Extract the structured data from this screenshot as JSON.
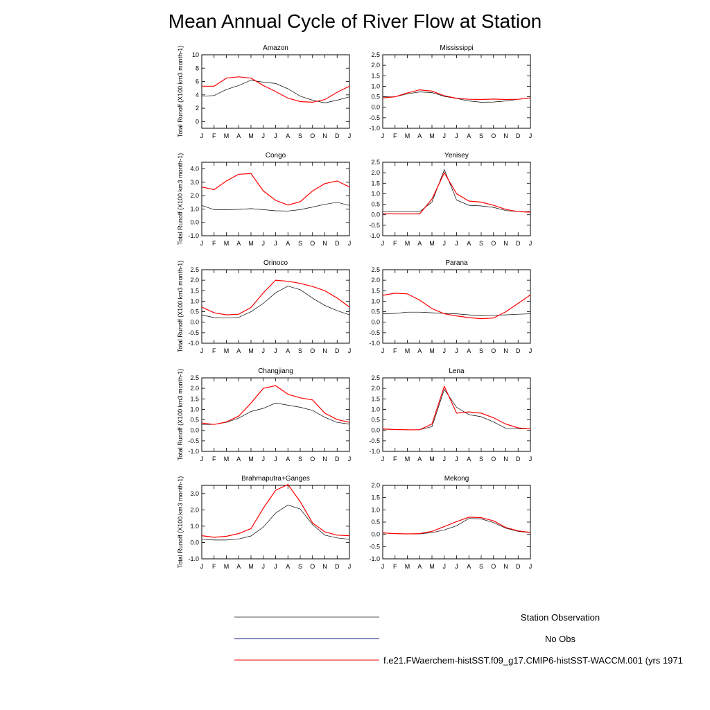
{
  "figure": {
    "title": "Mean Annual Cycle of River Flow at Station"
  },
  "legend": [
    {
      "label": "Station Observation",
      "color": "#000000"
    },
    {
      "label": "No Obs",
      "color": "#1a1a8c"
    },
    {
      "label": "f.e21.FWaerchem-histSST.f09_g17.CMIP6-histSST-WACCM.001 (yrs 1971",
      "color": "#ff0000"
    }
  ],
  "chart_data": [
    {
      "type": "line",
      "title": "Amazon",
      "ylabel": "Total Runoff (X100 km3 month-1)",
      "ylim": [
        -1,
        10
      ],
      "yticks": [
        "10",
        "8",
        "6",
        "4",
        "2",
        "0"
      ],
      "categories": [
        "J",
        "F",
        "M",
        "A",
        "M",
        "J",
        "J",
        "A",
        "S",
        "O",
        "N",
        "D",
        "J"
      ],
      "series": [
        {
          "name": "Station Observation",
          "color": "#000000",
          "values": [
            3.8,
            3.9,
            4.8,
            5.4,
            6.2,
            5.9,
            5.7,
            4.9,
            3.8,
            3.2,
            2.8,
            3.2,
            3.7
          ]
        },
        {
          "name": "f.e21.FWaerchem-histSST.f09_g17.CMIP6-histSST-WACCM.001 (yrs 1971",
          "color": "#ff0000",
          "values": [
            5.3,
            5.3,
            6.5,
            6.7,
            6.5,
            5.4,
            4.5,
            3.5,
            3.0,
            2.9,
            3.3,
            4.4,
            5.3
          ]
        }
      ]
    },
    {
      "type": "line",
      "title": "Mississippi",
      "ylabel": "",
      "ylim": [
        -1,
        2.5
      ],
      "yticks": [
        "2.5",
        "2.0",
        "1.5",
        "1.0",
        "0.5",
        "0.0",
        "-0.5",
        "-1.0"
      ],
      "categories": [
        "J",
        "F",
        "M",
        "A",
        "M",
        "J",
        "J",
        "A",
        "S",
        "O",
        "N",
        "D",
        "J"
      ],
      "series": [
        {
          "name": "Station Observation",
          "color": "#000000",
          "values": [
            0.5,
            0.5,
            0.64,
            0.73,
            0.7,
            0.52,
            0.42,
            0.3,
            0.24,
            0.25,
            0.3,
            0.38,
            0.45
          ]
        },
        {
          "name": "f.e21.FWaerchem-histSST.f09_g17.CMIP6-histSST-WACCM.001 (yrs 1971",
          "color": "#ff0000",
          "values": [
            0.45,
            0.5,
            0.68,
            0.83,
            0.77,
            0.55,
            0.43,
            0.38,
            0.37,
            0.39,
            0.37,
            0.38,
            0.45
          ]
        }
      ]
    },
    {
      "type": "line",
      "title": "Congo",
      "ylabel": "Total Runoff (X100 km3 month-1)",
      "ylim": [
        -1,
        4.5
      ],
      "yticks": [
        "4.0",
        "3.0",
        "2.0",
        "1.0",
        "0.0",
        "-1.0"
      ],
      "categories": [
        "J",
        "F",
        "M",
        "A",
        "M",
        "J",
        "J",
        "A",
        "S",
        "O",
        "N",
        "D",
        "J"
      ],
      "series": [
        {
          "name": "Station Observation",
          "color": "#000000",
          "values": [
            1.27,
            0.95,
            0.95,
            0.97,
            1.03,
            0.95,
            0.87,
            0.85,
            0.95,
            1.15,
            1.35,
            1.5,
            1.27
          ]
        },
        {
          "name": "f.e21.FWaerchem-histSST.f09_g17.CMIP6-histSST-WACCM.001 (yrs 1971",
          "color": "#ff0000",
          "values": [
            2.65,
            2.45,
            3.1,
            3.6,
            3.65,
            2.35,
            1.65,
            1.3,
            1.55,
            2.35,
            2.9,
            3.1,
            2.65
          ]
        }
      ]
    },
    {
      "type": "line",
      "title": "Yenisey",
      "ylabel": "",
      "ylim": [
        -1,
        2.5
      ],
      "yticks": [
        "2.5",
        "2.0",
        "1.5",
        "1.0",
        "0.5",
        "0.0",
        "-0.5",
        "-1.0"
      ],
      "categories": [
        "J",
        "F",
        "M",
        "A",
        "M",
        "J",
        "J",
        "A",
        "S",
        "O",
        "N",
        "D",
        "J"
      ],
      "series": [
        {
          "name": "Station Observation",
          "color": "#000000",
          "values": [
            0.15,
            0.15,
            0.15,
            0.15,
            0.6,
            2.15,
            0.7,
            0.45,
            0.42,
            0.35,
            0.2,
            0.15,
            0.15
          ]
        },
        {
          "name": "f.e21.FWaerchem-histSST.f09_g17.CMIP6-histSST-WACCM.001 (yrs 1971",
          "color": "#ff0000",
          "values": [
            0.05,
            0.04,
            0.04,
            0.04,
            0.75,
            2.0,
            1.0,
            0.65,
            0.6,
            0.45,
            0.25,
            0.15,
            0.12
          ]
        }
      ]
    },
    {
      "type": "line",
      "title": "Orinoco",
      "ylabel": "Total Runoff (X100 km3 month-1)",
      "ylim": [
        -1,
        2.5
      ],
      "yticks": [
        "2.5",
        "2.0",
        "1.5",
        "1.0",
        "0.5",
        "0.0",
        "-0.5",
        "-1.0"
      ],
      "categories": [
        "J",
        "F",
        "M",
        "A",
        "M",
        "J",
        "J",
        "A",
        "S",
        "O",
        "N",
        "D",
        "J"
      ],
      "series": [
        {
          "name": "Station Observation",
          "color": "#000000",
          "values": [
            0.35,
            0.22,
            0.2,
            0.23,
            0.5,
            0.9,
            1.4,
            1.72,
            1.55,
            1.15,
            0.8,
            0.55,
            0.35
          ]
        },
        {
          "name": "f.e21.FWaerchem-histSST.f09_g17.CMIP6-histSST-WACCM.001 (yrs 1971",
          "color": "#ff0000",
          "values": [
            0.72,
            0.45,
            0.35,
            0.38,
            0.7,
            1.4,
            2.0,
            1.95,
            1.85,
            1.7,
            1.5,
            1.15,
            0.72
          ]
        }
      ]
    },
    {
      "type": "line",
      "title": "Parana",
      "ylabel": "",
      "ylim": [
        -1,
        2.5
      ],
      "yticks": [
        "2.5",
        "2.0",
        "1.5",
        "1.0",
        "0.5",
        "0.0",
        "-0.5",
        "-1.0"
      ],
      "categories": [
        "J",
        "F",
        "M",
        "A",
        "M",
        "J",
        "J",
        "A",
        "S",
        "O",
        "N",
        "D",
        "J"
      ],
      "series": [
        {
          "name": "Station Observation",
          "color": "#000000",
          "values": [
            0.4,
            0.42,
            0.48,
            0.48,
            0.45,
            0.42,
            0.4,
            0.35,
            0.3,
            0.33,
            0.35,
            0.38,
            0.4
          ]
        },
        {
          "name": "f.e21.FWaerchem-histSST.f09_g17.CMIP6-histSST-WACCM.001 (yrs 1971",
          "color": "#ff0000",
          "values": [
            1.28,
            1.38,
            1.35,
            1.05,
            0.65,
            0.4,
            0.3,
            0.22,
            0.17,
            0.2,
            0.5,
            0.9,
            1.3
          ]
        }
      ]
    },
    {
      "type": "line",
      "title": "Changjiang",
      "ylabel": "Total Runoff (X100 km3 month-1)",
      "ylim": [
        -1,
        2.5
      ],
      "yticks": [
        "2.5",
        "2.0",
        "1.5",
        "1.0",
        "0.5",
        "0.0",
        "-0.5",
        "-1.0"
      ],
      "categories": [
        "J",
        "F",
        "M",
        "A",
        "M",
        "J",
        "J",
        "A",
        "S",
        "O",
        "N",
        "D",
        "J"
      ],
      "series": [
        {
          "name": "Station Observation",
          "color": "#000000",
          "values": [
            0.28,
            0.28,
            0.38,
            0.58,
            0.9,
            1.05,
            1.3,
            1.2,
            1.1,
            0.95,
            0.62,
            0.38,
            0.3
          ]
        },
        {
          "name": "f.e21.FWaerchem-histSST.f09_g17.CMIP6-histSST-WACCM.001 (yrs 1971",
          "color": "#ff0000",
          "values": [
            0.35,
            0.28,
            0.4,
            0.68,
            1.3,
            2.0,
            2.13,
            1.72,
            1.55,
            1.45,
            0.82,
            0.52,
            0.38
          ]
        }
      ]
    },
    {
      "type": "line",
      "title": "Lena",
      "ylabel": "",
      "ylim": [
        -1,
        2.5
      ],
      "yticks": [
        "2.5",
        "2.0",
        "1.5",
        "1.0",
        "0.5",
        "0.0",
        "-0.5",
        "-1.0"
      ],
      "categories": [
        "J",
        "F",
        "M",
        "A",
        "M",
        "J",
        "J",
        "A",
        "S",
        "O",
        "N",
        "D",
        "J"
      ],
      "series": [
        {
          "name": "Station Observation",
          "color": "#000000",
          "values": [
            0.05,
            0.04,
            0.03,
            0.03,
            0.18,
            1.95,
            1.1,
            0.75,
            0.65,
            0.4,
            0.1,
            0.08,
            0.07
          ]
        },
        {
          "name": "f.e21.FWaerchem-histSST.f09_g17.CMIP6-histSST-WACCM.001 (yrs 1971",
          "color": "#ff0000",
          "values": [
            0.07,
            0.04,
            0.03,
            0.03,
            0.3,
            2.1,
            0.82,
            0.88,
            0.82,
            0.6,
            0.3,
            0.12,
            0.07
          ]
        }
      ]
    },
    {
      "type": "line",
      "title": "Brahmaputra+Ganges",
      "ylabel": "Total Runoff (X100 km3 month-1)",
      "ylim": [
        -1,
        3.5
      ],
      "yticks": [
        "3.0",
        "2.0",
        "1.0",
        "0.0",
        "-1.0"
      ],
      "categories": [
        "J",
        "F",
        "M",
        "A",
        "M",
        "J",
        "J",
        "A",
        "S",
        "O",
        "N",
        "D",
        "J"
      ],
      "series": [
        {
          "name": "Station Observation",
          "color": "#000000",
          "values": [
            0.2,
            0.15,
            0.15,
            0.22,
            0.4,
            0.95,
            1.8,
            2.3,
            2.05,
            1.1,
            0.45,
            0.28,
            0.2
          ]
        },
        {
          "name": "f.e21.FWaerchem-histSST.f09_g17.CMIP6-histSST-WACCM.001 (yrs 1971",
          "color": "#ff0000",
          "values": [
            0.42,
            0.32,
            0.38,
            0.55,
            0.85,
            2.1,
            3.2,
            3.55,
            2.5,
            1.2,
            0.65,
            0.45,
            0.42
          ]
        }
      ]
    },
    {
      "type": "line",
      "title": "Mekong",
      "ylabel": "",
      "ylim": [
        -1,
        2
      ],
      "yticks": [
        "2.0",
        "1.5",
        "1.0",
        "0.5",
        "0.0",
        "-0.5",
        "-1.0"
      ],
      "categories": [
        "J",
        "F",
        "M",
        "A",
        "M",
        "J",
        "J",
        "A",
        "S",
        "O",
        "N",
        "D",
        "J"
      ],
      "series": [
        {
          "name": "Station Observation",
          "color": "#000000",
          "values": [
            0.05,
            0.03,
            0.02,
            0.02,
            0.07,
            0.18,
            0.35,
            0.65,
            0.63,
            0.48,
            0.25,
            0.12,
            0.07
          ]
        },
        {
          "name": "f.e21.FWaerchem-histSST.f09_g17.CMIP6-histSST-WACCM.001 (yrs 1971",
          "color": "#ff0000",
          "values": [
            0.06,
            0.03,
            0.02,
            0.03,
            0.12,
            0.32,
            0.52,
            0.7,
            0.68,
            0.55,
            0.28,
            0.14,
            0.08
          ]
        }
      ]
    }
  ]
}
